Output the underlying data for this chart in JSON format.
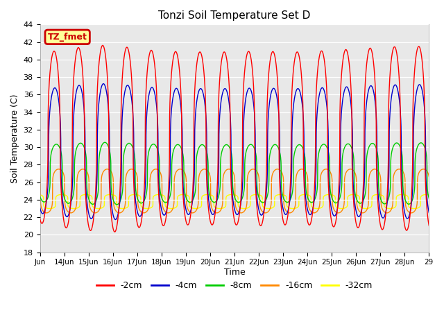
{
  "title": "Tonzi Soil Temperature Set D",
  "xlabel": "Time",
  "ylabel": "Soil Temperature (C)",
  "ylim": [
    18,
    44
  ],
  "xlim": [
    0,
    16
  ],
  "bg_color": "#e8e8e8",
  "line_colors": {
    "-2cm": "#ff0000",
    "-4cm": "#0000cc",
    "-8cm": "#00cc00",
    "-16cm": "#ff8800",
    "-32cm": "#ffff00"
  },
  "annotation_text": "TZ_fmet",
  "annotation_bg": "#ffff99",
  "annotation_border": "#cc0000",
  "x_tick_labels": [
    "Jun",
    "14Jun",
    "15Jun",
    "16Jun",
    "17Jun",
    "18Jun",
    "19Jun",
    "20Jun",
    "21Jun",
    "22Jun",
    "23Jun",
    "24Jun",
    "25Jun",
    "26Jun",
    "27Jun",
    "28Jun",
    "29"
  ],
  "x_tick_positions": [
    0,
    1,
    2,
    3,
    4,
    5,
    6,
    7,
    8,
    9,
    10,
    11,
    12,
    13,
    14,
    15,
    16
  ],
  "ytick_start": 18,
  "ytick_end": 44,
  "ytick_step": 2
}
